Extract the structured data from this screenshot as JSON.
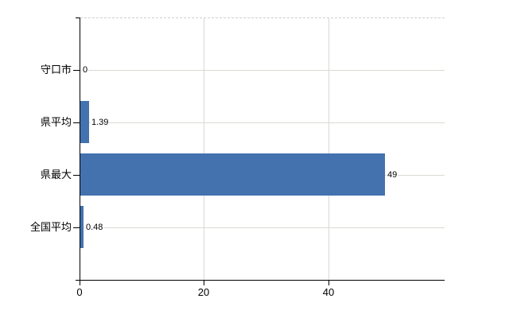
{
  "chart_data": {
    "type": "bar",
    "orientation": "horizontal",
    "title": "",
    "categories": [
      "守口市",
      "県平均",
      "県最大",
      "全国平均"
    ],
    "values": [
      0,
      1.39,
      49,
      0.48
    ],
    "value_labels": [
      "0",
      "1.39",
      "49",
      "0.48"
    ],
    "x_ticks": [
      0,
      20,
      40
    ],
    "x_tick_labels": [
      "0",
      "20",
      "40"
    ],
    "xlim": [
      0,
      58.7
    ],
    "grid": true,
    "legend": false,
    "colors": {
      "bar": "#4372af",
      "gridline": "#d8dbd4",
      "top_border": "#cfcfcf",
      "axis": "#000000",
      "text": "#000000",
      "background": "#ffffff"
    }
  }
}
